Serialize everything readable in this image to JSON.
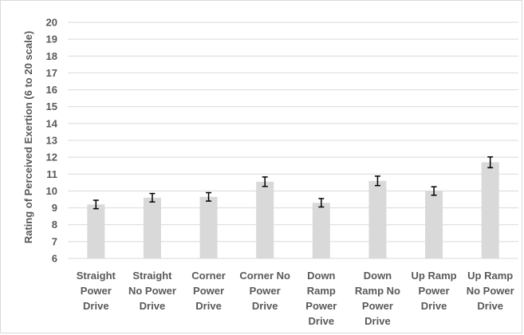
{
  "chart_data": {
    "type": "bar",
    "title": "",
    "xlabel": "",
    "ylabel": "Rating of Perceived Exertion (6 to 20 scale)",
    "ylim": [
      6,
      20
    ],
    "yticks": [
      6,
      7,
      8,
      9,
      10,
      11,
      12,
      13,
      14,
      15,
      16,
      17,
      18,
      19,
      20
    ],
    "grid": true,
    "legend": "none",
    "categories": [
      [
        "Straight",
        "Power",
        "Drive"
      ],
      [
        "Straight",
        "No Power",
        "Drive"
      ],
      [
        "Corner",
        "Power",
        "Drive"
      ],
      [
        "Corner No",
        "Power",
        "Drive"
      ],
      [
        "Down",
        "Ramp",
        "Power",
        "Drive"
      ],
      [
        "Down",
        "Ramp No",
        "Power",
        "Drive"
      ],
      [
        "Up Ramp",
        "Power",
        "Drive"
      ],
      [
        "Up Ramp",
        "No Power",
        "Drive"
      ]
    ],
    "values": [
      9.2,
      9.6,
      9.65,
      10.55,
      9.3,
      10.6,
      10.0,
      11.7
    ],
    "error": [
      0.25,
      0.25,
      0.25,
      0.28,
      0.25,
      0.28,
      0.25,
      0.32
    ],
    "colors": {
      "bar": "#d9d9d9",
      "grid": "#d9d9d9",
      "error_bar": "#000000",
      "text": "#595959"
    }
  }
}
